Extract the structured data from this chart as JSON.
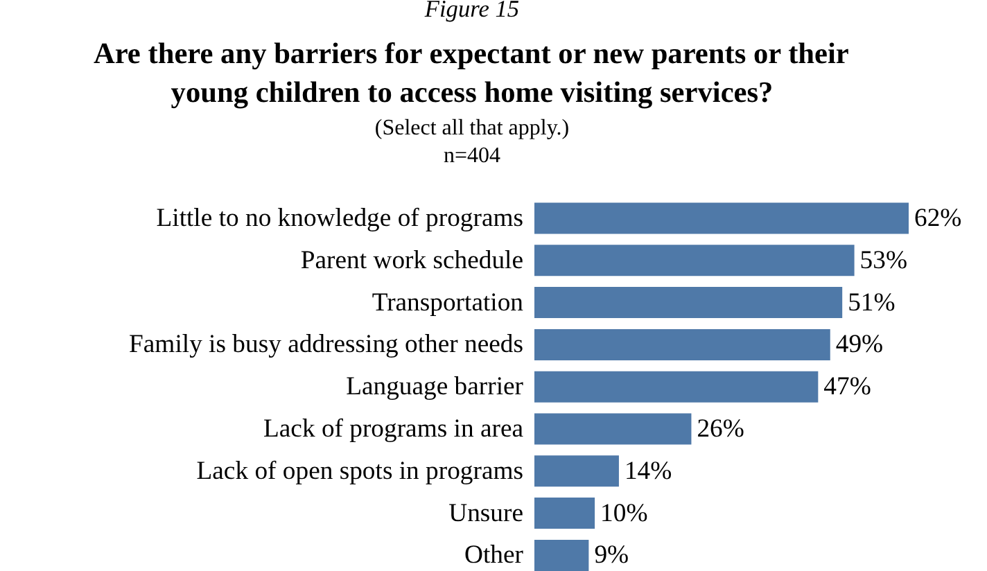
{
  "chart_data": {
    "type": "bar",
    "orientation": "horizontal",
    "title": "Are there any barriers for expectant or new parents or their young children to access home visiting services?",
    "subtitle": "(Select all that apply.)",
    "annotations": [
      "Figure 15",
      "n=404"
    ],
    "categories": [
      "Little to no knowledge of programs",
      "Parent work schedule",
      "Transportation",
      "Family is busy addressing other needs",
      "Language barrier",
      "Lack of programs in area",
      "Lack of open spots in programs",
      "Unsure",
      "Other"
    ],
    "values": [
      62,
      53,
      51,
      49,
      47,
      26,
      14,
      10,
      9
    ],
    "color": "#4f79a8",
    "value_labels": [
      "62%",
      "53%",
      "51%",
      "49%",
      "47%",
      "26%",
      "14%",
      "10%",
      "9%"
    ]
  }
}
